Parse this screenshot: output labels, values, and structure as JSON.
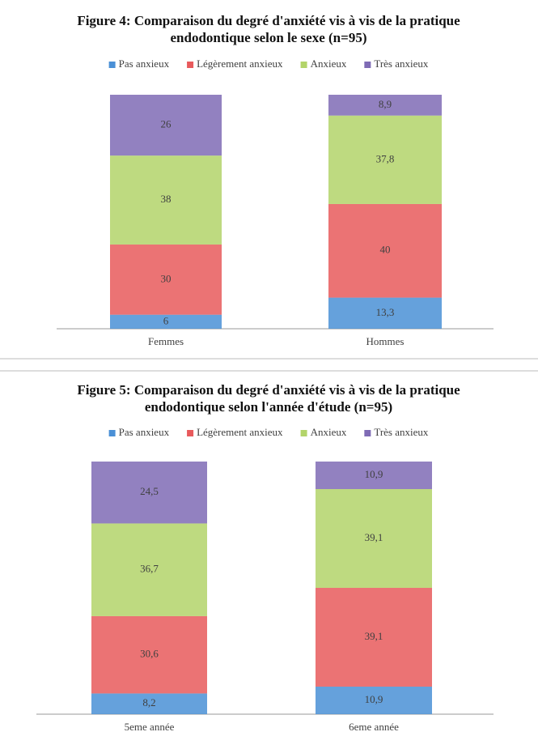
{
  "chart_data": [
    {
      "type": "stacked_bar",
      "title": "Figure 4: Comparaison du degré d'anxiété vis à vis de la pratique endodontique selon le sexe (n=95)",
      "categories": [
        "Femmes",
        "Hommes"
      ],
      "series": [
        {
          "name": "Pas anxieux",
          "color": "#4a90d6",
          "values": [
            6,
            13.3
          ],
          "value_labels": [
            "6",
            "13,3"
          ]
        },
        {
          "name": "Légèrement anxieux",
          "color": "#e85a5c",
          "values": [
            30,
            40
          ],
          "value_labels": [
            "30",
            "40"
          ]
        },
        {
          "name": "Anxieux",
          "color": "#b3d46a",
          "values": [
            38,
            37.8
          ],
          "value_labels": [
            "38",
            "37,8"
          ]
        },
        {
          "name": "Très anxieux",
          "color": "#7f6bb5",
          "values": [
            26,
            8.9
          ],
          "value_labels": [
            "26",
            "8,9"
          ]
        }
      ]
    },
    {
      "type": "stacked_bar",
      "title": "Figure 5: Comparaison du degré d'anxiété vis à vis de la pratique endodontique selon l'année d'étude (n=95)",
      "categories": [
        "5eme année",
        "6eme année"
      ],
      "series": [
        {
          "name": "Pas anxieux",
          "color": "#4a90d6",
          "values": [
            8.2,
            10.9
          ],
          "value_labels": [
            "8,2",
            "10,9"
          ]
        },
        {
          "name": "Légèrement anxieux",
          "color": "#e85a5c",
          "values": [
            30.6,
            39.1
          ],
          "value_labels": [
            "30,6",
            "39,1"
          ]
        },
        {
          "name": "Anxieux",
          "color": "#b3d46a",
          "values": [
            36.7,
            39.1
          ],
          "value_labels": [
            "36,7",
            "39,1"
          ]
        },
        {
          "name": "Très anxieux",
          "color": "#7f6bb5",
          "values": [
            24.5,
            10.9
          ],
          "value_labels": [
            "24,5",
            "10,9"
          ]
        }
      ]
    }
  ]
}
